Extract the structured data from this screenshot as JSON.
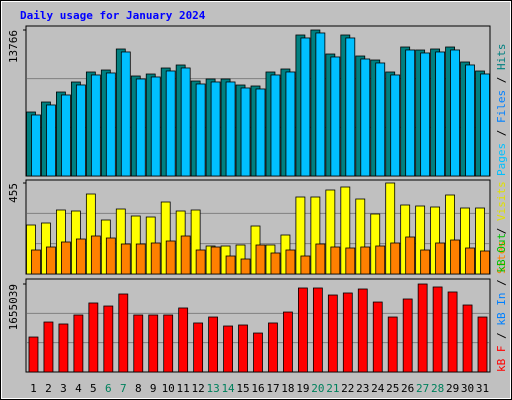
{
  "chart_data": [
    {
      "type": "bar",
      "title": "Daily usage for January 2024",
      "categories": [
        "1",
        "2",
        "3",
        "4",
        "5",
        "6",
        "7",
        "8",
        "9",
        "10",
        "11",
        "12",
        "13",
        "14",
        "15",
        "16",
        "17",
        "18",
        "19",
        "20",
        "21",
        "22",
        "23",
        "24",
        "25",
        "26",
        "27",
        "28",
        "29",
        "30",
        "31"
      ],
      "category_colors": [
        "#000000",
        "#000000",
        "#000000",
        "#000000",
        "#000000",
        "#00805c",
        "#00805c",
        "#000000",
        "#000000",
        "#000000",
        "#000000",
        "#000000",
        "#00805c",
        "#00805c",
        "#000000",
        "#000000",
        "#000000",
        "#000000",
        "#000000",
        "#00805c",
        "#00805c",
        "#000000",
        "#000000",
        "#000000",
        "#000000",
        "#000000",
        "#00805c",
        "#00805c",
        "#000000",
        "#000000",
        "#000000"
      ],
      "series": [
        {
          "name": "Hits",
          "color": "#008080",
          "values": [
            6034,
            6977,
            7920,
            8863,
            9806,
            9994,
            11975,
            9429,
            9617,
            10183,
            10466,
            8957,
            9146,
            9146,
            8580,
            8486,
            9806,
            10089,
            13295,
            13766,
            11503,
            13295,
            11314,
            10937,
            9806,
            12163,
            11880,
            11975,
            12163,
            10749,
            9900
          ]
        },
        {
          "name": "Pages",
          "color": "#00c0ff",
          "values": [
            5754,
            6697,
            7640,
            8583,
            9526,
            9714,
            11695,
            9149,
            9337,
            9903,
            10186,
            8677,
            8866,
            8866,
            8300,
            8206,
            9526,
            9809,
            13015,
            13486,
            11223,
            13015,
            11034,
            10657,
            9526,
            11883,
            11600,
            11695,
            11883,
            10469,
            9620
          ]
        }
      ],
      "legend": [
        {
          "label": "Pages",
          "color": "#00c0ff"
        },
        {
          "label": "Files",
          "color": "#0080ff"
        },
        {
          "label": "Hits",
          "color": "#008080"
        }
      ],
      "ylim": [
        0,
        13766
      ],
      "yticks": [
        13766
      ],
      "grid": true
    },
    {
      "type": "bar",
      "series": [
        {
          "name": "Visits",
          "color": "#ffff00",
          "values": [
            245,
            255,
            320,
            315,
            400,
            270,
            325,
            290,
            285,
            360,
            315,
            320,
            140,
            140,
            145,
            240,
            145,
            195,
            385,
            385,
            420,
            435,
            375,
            300,
            455,
            345,
            340,
            335,
            395,
            330,
            330
          ]
        },
        {
          "name": "Sites",
          "color": "#ff8000",
          "values": [
            120,
            135,
            160,
            175,
            190,
            180,
            150,
            150,
            155,
            165,
            190,
            120,
            135,
            90,
            75,
            145,
            105,
            120,
            90,
            150,
            135,
            130,
            135,
            140,
            155,
            185,
            120,
            155,
            170,
            130,
            115
          ]
        }
      ],
      "legend": [
        {
          "label": "Sites",
          "color": "#ff8000"
        },
        {
          "label": "Visits",
          "color": "#e0e000"
        }
      ],
      "ylim": [
        0,
        455
      ],
      "yticks": [
        455
      ],
      "grid": true
    },
    {
      "type": "bar",
      "series": [
        {
          "name": "kB F",
          "color": "#ff0000",
          "values": [
            658000,
            940000,
            903000,
            1072000,
            1298000,
            1241000,
            1467000,
            1072000,
            1072000,
            1072000,
            1204000,
            922000,
            1034000,
            865000,
            884000,
            733000,
            922000,
            1128000,
            1580000,
            1580000,
            1448000,
            1486000,
            1561000,
            1316000,
            1034000,
            1373000,
            1655039,
            1599000,
            1505000,
            1260000,
            1034000
          ]
        }
      ],
      "legend": [
        {
          "label": "kB F",
          "color": "#ff0000"
        },
        {
          "label": "kB In",
          "color": "#0080ff"
        },
        {
          "label": "kB Out",
          "color": "#00c000"
        }
      ],
      "ylim": [
        0,
        1655039
      ],
      "yticks": [
        1655039
      ],
      "grid": true
    }
  ]
}
